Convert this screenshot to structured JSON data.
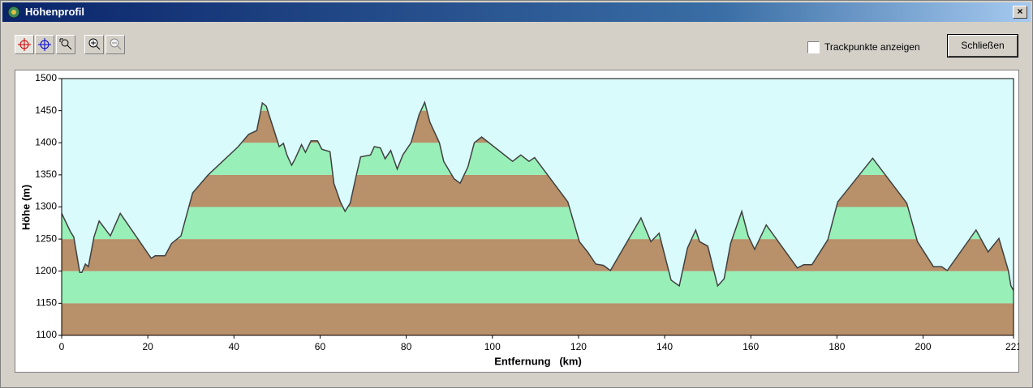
{
  "window": {
    "title": "Höhenprofil",
    "checkbox_label": "Trackpunkte anzeigen",
    "close_button": "Schließen"
  },
  "chart_data": {
    "type": "area",
    "x_label": "Entfernung   (km)",
    "y_label": "Höhe (m)",
    "x": [
      0,
      2,
      2.8,
      4.2,
      4.7,
      5.5,
      6.2,
      7.5,
      8.7,
      11.3,
      13.6,
      20.8,
      21.7,
      24,
      25.5,
      27.7,
      30.4,
      34,
      41,
      43.4,
      45.3,
      46.6,
      47.5,
      49.6,
      50.5,
      51.5,
      52.3,
      53.4,
      54.2,
      55.7,
      56.6,
      57.9,
      59.4,
      60.4,
      62.3,
      63.2,
      64.7,
      65.8,
      67,
      68.3,
      69.4,
      71.7,
      72.6,
      74,
      75.1,
      76.4,
      77.9,
      79.2,
      81.1,
      83,
      84.3,
      85.5,
      87.7,
      88.7,
      91.1,
      92.5,
      94.3,
      95.8,
      97.5,
      104.7,
      106.6,
      108.5,
      109.8,
      117.5,
      120.2,
      122.1,
      124,
      125.8,
      127.4,
      134.5,
      136.8,
      138.7,
      141.5,
      143.4,
      145.3,
      147.2,
      148.1,
      150,
      152.3,
      153.8,
      155.3,
      157.9,
      159.4,
      160.9,
      163.6,
      170.8,
      172.3,
      174.2,
      177.9,
      180.2,
      188.3,
      196.2,
      198.7,
      202.4,
      204.3,
      205.6,
      212.3,
      215.1,
      217.6,
      219.8,
      220.4,
      221
    ],
    "values": [
      1290,
      1262,
      1253,
      1198,
      1198,
      1211,
      1207,
      1253,
      1278,
      1255,
      1290,
      1220,
      1224,
      1224,
      1243,
      1255,
      1322,
      1350,
      1394,
      1413,
      1419,
      1462,
      1457,
      1413,
      1394,
      1399,
      1381,
      1365,
      1375,
      1397,
      1385,
      1403,
      1403,
      1390,
      1386,
      1337,
      1308,
      1293,
      1306,
      1346,
      1378,
      1381,
      1394,
      1392,
      1375,
      1388,
      1359,
      1381,
      1400,
      1444,
      1463,
      1432,
      1400,
      1371,
      1344,
      1337,
      1362,
      1400,
      1409,
      1371,
      1381,
      1371,
      1377,
      1308,
      1246,
      1230,
      1211,
      1209,
      1201,
      1283,
      1246,
      1259,
      1186,
      1177,
      1236,
      1264,
      1246,
      1239,
      1177,
      1188,
      1243,
      1293,
      1255,
      1234,
      1272,
      1205,
      1210,
      1210,
      1249,
      1308,
      1376,
      1306,
      1246,
      1207,
      1207,
      1201,
      1264,
      1230,
      1251,
      1201,
      1177,
      1170
    ],
    "xlim": [
      0,
      221
    ],
    "ylim": [
      1100,
      1500
    ],
    "xticks": [
      0,
      20,
      40,
      60,
      80,
      100,
      120,
      140,
      160,
      180,
      200,
      221
    ],
    "yticks": [
      1100,
      1150,
      1200,
      1250,
      1300,
      1350,
      1400,
      1450,
      1500
    ],
    "band_colors": [
      "#b89069",
      "#98f0b8"
    ],
    "background": "#d9fbfb",
    "line_color": "#404040"
  }
}
